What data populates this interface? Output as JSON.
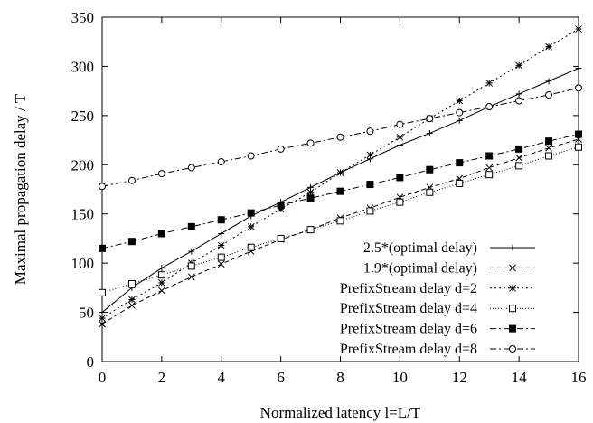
{
  "chart_data": {
    "type": "line",
    "xlabel": "Normalized latency l=L/T",
    "ylabel": "Maximal propagation delay / T",
    "xlim": [
      0,
      16
    ],
    "ylim": [
      0,
      350
    ],
    "xticks": [
      0,
      2,
      4,
      6,
      8,
      10,
      12,
      14,
      16
    ],
    "yticks": [
      0,
      50,
      100,
      150,
      200,
      250,
      300,
      350
    ],
    "grid": false,
    "legend_position": "bottom-right",
    "x": [
      0,
      1,
      2,
      3,
      4,
      5,
      6,
      7,
      8,
      9,
      10,
      11,
      12,
      13,
      14,
      15,
      16
    ],
    "series": [
      {
        "name": "2.5*(optimal delay)",
        "marker": "plus",
        "dash": "",
        "values": [
          50,
          75,
          95,
          112,
          130,
          148,
          162,
          177,
          192,
          206,
          220,
          232,
          245,
          259,
          272,
          285,
          298
        ]
      },
      {
        "name": "1.9*(optimal delay)",
        "marker": "cross",
        "dash": "5,3",
        "values": [
          38,
          57,
          72,
          86,
          99,
          112,
          124,
          134,
          146,
          156,
          167,
          177,
          186,
          197,
          207,
          217,
          226
        ]
      },
      {
        "name": "PrefixStream delay d=2",
        "marker": "asterisk",
        "dash": "2,3",
        "values": [
          44,
          63,
          80,
          100,
          118,
          137,
          155,
          172,
          192,
          210,
          228,
          247,
          265,
          283,
          301,
          320,
          338
        ]
      },
      {
        "name": "PrefixStream delay d=4",
        "marker": "square-open",
        "dash": "1,2",
        "values": [
          70,
          79,
          88,
          97,
          106,
          116,
          125,
          134,
          143,
          153,
          162,
          172,
          181,
          190,
          199,
          209,
          218
        ]
      },
      {
        "name": "PrefixStream delay d=6",
        "marker": "square-filled",
        "dash": "7,3,2,3",
        "values": [
          115,
          122,
          130,
          137,
          144,
          151,
          159,
          166,
          173,
          180,
          187,
          195,
          202,
          209,
          216,
          224,
          231
        ]
      },
      {
        "name": "PrefixStream delay d=8",
        "marker": "circle-open",
        "dash": "7,3,2,3",
        "values": [
          178,
          184,
          191,
          197,
          203,
          209,
          216,
          222,
          228,
          234,
          241,
          247,
          253,
          259,
          265,
          271,
          278
        ]
      }
    ]
  }
}
